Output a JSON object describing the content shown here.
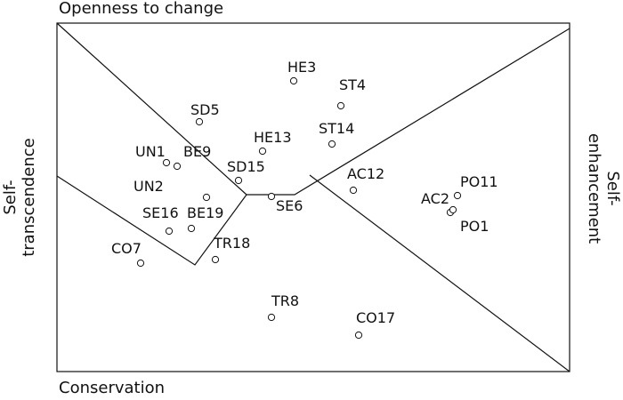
{
  "axes": {
    "top": "Openness to change",
    "bottom": "Conservation",
    "left_line1": "Self-",
    "left_line2": "transcendence",
    "right_line1": "Self-",
    "right_line2": "enhancement"
  },
  "points": [
    {
      "id": "HE3",
      "label": "HE3"
    },
    {
      "id": "ST4",
      "label": "ST4"
    },
    {
      "id": "SD5",
      "label": "SD5"
    },
    {
      "id": "HE13",
      "label": "HE13"
    },
    {
      "id": "ST14",
      "label": "ST14"
    },
    {
      "id": "UN1",
      "label": "UN1"
    },
    {
      "id": "BE9",
      "label": "BE9"
    },
    {
      "id": "SD15",
      "label": "SD15"
    },
    {
      "id": "AC12",
      "label": "AC12"
    },
    {
      "id": "PO11",
      "label": "PO11"
    },
    {
      "id": "AC2",
      "label": "AC2"
    },
    {
      "id": "PO1",
      "label": "PO1"
    },
    {
      "id": "UN2",
      "label": "UN2"
    },
    {
      "id": "SE6",
      "label": "SE6"
    },
    {
      "id": "SE16",
      "label": "SE16"
    },
    {
      "id": "BE19",
      "label": "BE19"
    },
    {
      "id": "CO7",
      "label": "CO7"
    },
    {
      "id": "TR18",
      "label": "TR18"
    },
    {
      "id": "TR8",
      "label": "TR8"
    },
    {
      "id": "CO17",
      "label": "CO17"
    }
  ]
}
